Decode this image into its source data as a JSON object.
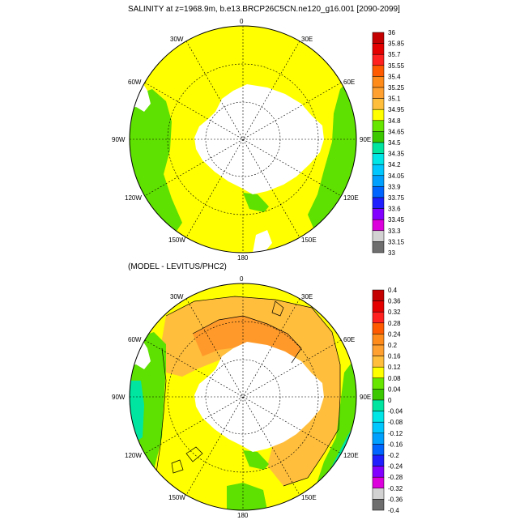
{
  "panels": [
    {
      "title": "SALINITY at z=1968.9m, b.e13.BRCP26C5CN.ne120_g16.001 [2090-2099]",
      "lon_labels": [
        "0",
        "30E",
        "60E",
        "90E",
        "120E",
        "150E",
        "180",
        "150W",
        "120W",
        "90W",
        "60W",
        "30W"
      ],
      "colorbar": {
        "labels": [
          "36",
          "35.85",
          "35.7",
          "35.55",
          "35.4",
          "35.25",
          "35.1",
          "34.95",
          "34.8",
          "34.65",
          "34.5",
          "34.35",
          "34.2",
          "34.05",
          "33.9",
          "33.75",
          "33.6",
          "33.45",
          "33.3",
          "33.15",
          "33"
        ],
        "colors": [
          "#c40000",
          "#e50000",
          "#ff2020",
          "#ff5a00",
          "#ff8c1a",
          "#ffa030",
          "#ffbe3c",
          "#ffff00",
          "#66e600",
          "#3cc800",
          "#00e6a0",
          "#00e6e6",
          "#00c8ff",
          "#00a0ff",
          "#0064ff",
          "#1e1eff",
          "#8200ff",
          "#dc00dc",
          "#d2d2d2",
          "#6e6e6e"
        ]
      }
    },
    {
      "title": "(MODEL - LEVITUS/PHC2)",
      "lon_labels": [
        "0",
        "30E",
        "60E",
        "90E",
        "120E",
        "150E",
        "180",
        "150W",
        "120W",
        "90W",
        "60W",
        "30W"
      ],
      "colorbar": {
        "labels": [
          "0.4",
          "0.36",
          "0.32",
          "0.28",
          "0.24",
          "0.2",
          "0.16",
          "0.12",
          "0.08",
          "0.04",
          "0",
          "-0.04",
          "-0.08",
          "-0.12",
          "-0.16",
          "-0.2",
          "-0.24",
          "-0.28",
          "-0.32",
          "-0.36",
          "-0.4"
        ],
        "colors": [
          "#c40000",
          "#e50000",
          "#ff2020",
          "#ff5a00",
          "#ff8c1a",
          "#ffa030",
          "#ffbe3c",
          "#ffff00",
          "#66e600",
          "#3cc800",
          "#00e6a0",
          "#00e6e6",
          "#00c8ff",
          "#00a0ff",
          "#0064ff",
          "#1e1eff",
          "#8200ff",
          "#dc00dc",
          "#d2d2d2",
          "#6e6e6e"
        ]
      }
    }
  ],
  "colors": {
    "yellow": "#ffff00",
    "green": "#5ee000",
    "orange": "#ffbe3c",
    "dark_orange": "#ff9a2a",
    "teal": "#00e6a0",
    "cyan": "#00e6e6",
    "land": "#ffffff"
  }
}
